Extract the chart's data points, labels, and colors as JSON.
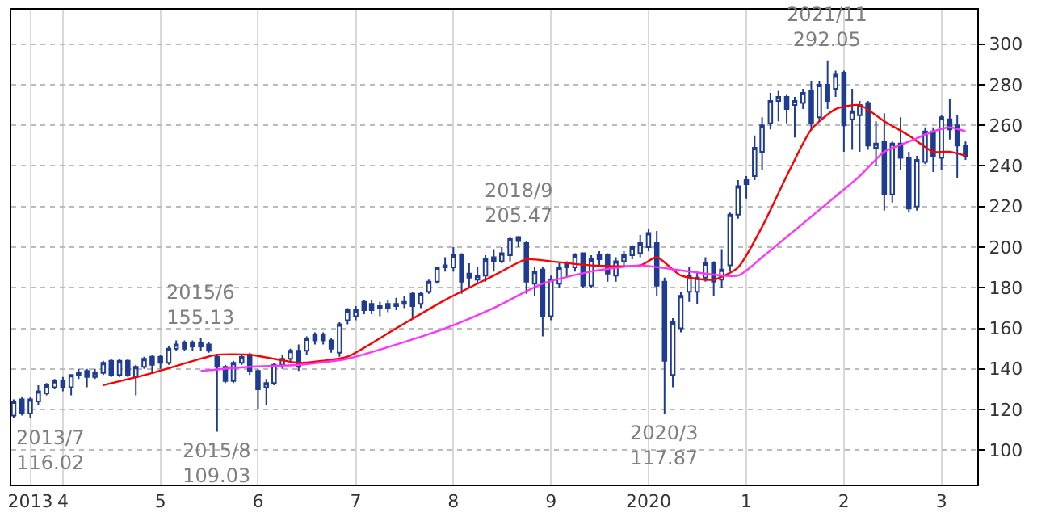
{
  "chart_data": {
    "type": "candlestick",
    "xlim": [
      "2013-06-22",
      "2023-05-15"
    ],
    "ylim": [
      83,
      317
    ],
    "xticks": [
      {
        "value": "2013-09-01",
        "label": "2013"
      },
      {
        "value": "2014-01-01",
        "label": "4"
      },
      {
        "value": "2015-01-01",
        "label": "5"
      },
      {
        "value": "2016-01-01",
        "label": "6"
      },
      {
        "value": "2017-01-01",
        "label": "7"
      },
      {
        "value": "2018-01-01",
        "label": "8"
      },
      {
        "value": "2019-01-01",
        "label": "9"
      },
      {
        "value": "2020-01-01",
        "label": "2020"
      },
      {
        "value": "2021-01-01",
        "label": "1"
      },
      {
        "value": "2022-01-01",
        "label": "2"
      },
      {
        "value": "2023-01-01",
        "label": "3"
      }
    ],
    "yticks": [
      100,
      120,
      140,
      160,
      180,
      200,
      220,
      240,
      260,
      280,
      300
    ],
    "grid": true,
    "annotations": [
      {
        "text": "2013/7\n116.02",
        "x": "2013-07",
        "y": 116.02
      },
      {
        "text": "2015/6\n155.13",
        "x": "2015-06",
        "y": 155.13
      },
      {
        "text": "2015/8\n109.03",
        "x": "2015-08",
        "y": 109.03
      },
      {
        "text": "2018/9\n205.47",
        "x": "2018-09",
        "y": 205.47
      },
      {
        "text": "2020/3\n117.87",
        "x": "2020-03",
        "y": 117.87
      },
      {
        "text": "2021/11\n292.05",
        "x": "2021-11",
        "y": 292.05
      }
    ],
    "series": [
      {
        "color": "#1f3c92",
        "x": [
          "2013-07",
          "2013-08",
          "2013-09",
          "2013-10",
          "2013-11",
          "2013-12",
          "2014-01",
          "2014-02",
          "2014-03",
          "2014-04",
          "2014-05",
          "2014-06",
          "2014-07",
          "2014-08",
          "2014-09",
          "2014-10",
          "2014-11",
          "2014-12",
          "2015-01",
          "2015-02",
          "2015-03",
          "2015-04",
          "2015-05",
          "2015-06",
          "2015-07",
          "2015-08",
          "2015-09",
          "2015-10",
          "2015-11",
          "2015-12",
          "2016-01",
          "2016-02",
          "2016-03",
          "2016-04",
          "2016-05",
          "2016-06",
          "2016-07",
          "2016-08",
          "2016-09",
          "2016-10",
          "2016-11",
          "2016-12",
          "2017-01",
          "2017-02",
          "2017-03",
          "2017-04",
          "2017-05",
          "2017-06",
          "2017-07",
          "2017-08",
          "2017-09",
          "2017-10",
          "2017-11",
          "2017-12",
          "2018-01",
          "2018-02",
          "2018-03",
          "2018-04",
          "2018-05",
          "2018-06",
          "2018-07",
          "2018-08",
          "2018-09",
          "2018-10",
          "2018-11",
          "2018-12",
          "2019-01",
          "2019-02",
          "2019-03",
          "2019-04",
          "2019-05",
          "2019-06",
          "2019-07",
          "2019-08",
          "2019-09",
          "2019-10",
          "2019-11",
          "2019-12",
          "2020-01",
          "2020-02",
          "2020-03",
          "2020-04",
          "2020-05",
          "2020-06",
          "2020-07",
          "2020-08",
          "2020-09",
          "2020-10",
          "2020-11",
          "2020-12",
          "2021-01",
          "2021-02",
          "2021-03",
          "2021-04",
          "2021-05",
          "2021-06",
          "2021-07",
          "2021-08",
          "2021-09",
          "2021-10",
          "2021-11",
          "2021-12",
          "2022-01",
          "2022-02",
          "2022-03",
          "2022-04",
          "2022-05",
          "2022-06",
          "2022-07",
          "2022-08",
          "2022-09",
          "2022-10",
          "2022-11",
          "2022-12",
          "2023-01",
          "2023-02",
          "2023-03",
          "2023-04"
        ],
        "ohlc": [
          [
            117,
            125,
            116.02,
            124
          ],
          [
            125,
            126,
            117,
            118
          ],
          [
            118,
            126,
            116,
            125
          ],
          [
            124,
            132,
            122,
            129
          ],
          [
            128,
            133,
            127,
            132
          ],
          [
            131,
            135,
            130,
            134
          ],
          [
            134,
            136,
            129,
            131
          ],
          [
            131,
            137,
            127,
            137
          ],
          [
            137,
            140,
            135,
            138
          ],
          [
            139,
            140,
            131,
            136
          ],
          [
            136,
            140,
            135,
            138
          ],
          [
            138,
            144,
            137,
            143
          ],
          [
            144,
            145,
            136,
            137
          ],
          [
            137,
            145,
            136,
            144
          ],
          [
            144,
            145,
            136,
            137
          ],
          [
            136,
            142,
            127,
            141
          ],
          [
            141,
            146,
            140,
            145
          ],
          [
            146,
            147,
            138,
            142
          ],
          [
            146,
            147,
            140,
            143
          ],
          [
            143,
            151,
            142,
            150
          ],
          [
            150,
            154,
            149,
            152
          ],
          [
            153,
            154,
            149,
            150
          ],
          [
            153,
            154,
            149,
            151
          ],
          [
            153,
            155.13,
            149,
            151
          ],
          [
            152,
            153,
            148,
            149
          ],
          [
            146,
            147,
            109.03,
            141
          ],
          [
            141,
            142,
            133,
            134
          ],
          [
            134,
            144,
            133,
            143
          ],
          [
            143,
            147,
            142,
            146
          ],
          [
            147,
            148,
            137,
            139
          ],
          [
            139,
            140,
            120,
            130
          ],
          [
            131,
            135,
            122,
            133
          ],
          [
            133,
            143,
            132,
            142
          ],
          [
            142,
            147,
            140,
            145
          ],
          [
            145,
            150,
            143,
            149
          ],
          [
            149,
            152,
            139,
            141
          ],
          [
            149,
            156,
            147,
            155
          ],
          [
            157,
            158,
            152,
            154
          ],
          [
            157,
            158,
            152,
            154
          ],
          [
            154,
            155,
            148,
            150
          ],
          [
            148,
            163,
            146,
            162
          ],
          [
            164,
            170,
            162,
            169
          ],
          [
            166,
            171,
            164,
            169
          ],
          [
            173,
            174,
            167,
            169
          ],
          [
            172,
            174,
            167,
            169
          ],
          [
            170,
            173,
            166,
            171
          ],
          [
            172,
            174,
            168,
            170
          ],
          [
            171,
            175,
            169,
            172
          ],
          [
            172,
            176,
            170,
            173
          ],
          [
            177,
            178,
            165,
            171
          ],
          [
            172,
            178,
            170,
            177
          ],
          [
            178,
            184,
            177,
            183
          ],
          [
            183,
            190,
            182,
            190
          ],
          [
            190,
            195,
            188,
            191
          ],
          [
            190,
            200,
            188,
            196
          ],
          [
            196,
            197,
            177,
            183
          ],
          [
            187,
            192,
            180,
            185
          ],
          [
            184,
            190,
            182,
            186
          ],
          [
            186,
            196,
            183,
            194
          ],
          [
            195,
            199,
            188,
            193
          ],
          [
            193,
            200,
            192,
            197
          ],
          [
            196,
            205,
            193,
            204
          ],
          [
            205,
            205.47,
            200,
            203
          ],
          [
            202,
            203,
            177,
            183
          ],
          [
            182,
            190,
            176,
            188
          ],
          [
            189,
            190,
            156,
            166
          ],
          [
            166,
            186,
            164,
            184
          ],
          [
            182,
            192,
            180,
            190
          ],
          [
            192,
            193,
            185,
            190
          ],
          [
            190,
            197,
            188,
            196
          ],
          [
            197,
            197,
            180,
            181
          ],
          [
            181,
            196,
            180,
            194
          ],
          [
            194,
            198,
            190,
            196
          ],
          [
            196,
            197,
            183,
            187
          ],
          [
            186,
            195,
            183,
            193
          ],
          [
            193,
            198,
            190,
            196
          ],
          [
            196,
            201,
            194,
            200
          ],
          [
            197,
            206,
            195,
            202
          ],
          [
            200,
            209,
            198,
            207
          ],
          [
            202,
            208,
            176,
            181
          ],
          [
            183,
            185,
            117.87,
            144
          ],
          [
            137,
            165,
            131,
            163
          ],
          [
            160,
            178,
            158,
            176
          ],
          [
            178,
            190,
            173,
            186
          ],
          [
            178,
            188,
            172,
            185
          ],
          [
            185,
            195,
            183,
            192
          ],
          [
            192,
            193,
            176,
            183
          ],
          [
            184,
            199,
            180,
            189
          ],
          [
            191,
            217,
            188,
            216
          ],
          [
            216,
            233,
            214,
            230
          ],
          [
            231,
            235,
            224,
            233
          ],
          [
            235,
            255,
            233,
            249
          ],
          [
            247,
            264,
            238,
            260
          ],
          [
            261,
            276,
            258,
            272
          ],
          [
            272,
            277,
            262,
            274
          ],
          [
            274,
            275,
            261,
            268
          ],
          [
            270,
            274,
            254,
            272
          ],
          [
            271,
            278,
            268,
            276
          ],
          [
            277,
            282,
            258,
            261
          ],
          [
            264,
            282,
            262,
            280
          ],
          [
            280,
            292.05,
            268,
            272
          ],
          [
            278,
            287,
            274,
            285
          ],
          [
            286,
            287,
            247,
            260
          ],
          [
            263,
            278,
            248,
            267
          ],
          [
            265,
            272,
            247,
            270
          ],
          [
            271,
            272,
            248,
            250
          ],
          [
            249,
            262,
            240,
            251
          ],
          [
            252,
            266,
            218,
            226
          ],
          [
            226,
            252,
            222,
            251
          ],
          [
            251,
            264,
            238,
            244
          ],
          [
            244,
            247,
            217,
            219
          ],
          [
            220,
            245,
            218,
            243
          ],
          [
            242,
            259,
            241,
            257
          ],
          [
            257,
            259,
            237,
            245
          ],
          [
            244,
            265,
            238,
            264
          ],
          [
            263,
            273,
            253,
            258
          ],
          [
            260,
            265,
            234,
            250
          ],
          [
            250,
            252,
            243,
            245
          ]
        ]
      },
      {
        "type": "line",
        "color": "#ff0000",
        "x": [
          "2014-06",
          "2014-12",
          "2015-06",
          "2015-08",
          "2015-12",
          "2016-03",
          "2016-06",
          "2016-09",
          "2016-12",
          "2017-06",
          "2017-12",
          "2018-06",
          "2018-10",
          "2019-01",
          "2019-06",
          "2019-12",
          "2020-02",
          "2020-05",
          "2020-09",
          "2020-12",
          "2021-03",
          "2021-06",
          "2021-09",
          "2021-12",
          "2022-03",
          "2022-06",
          "2022-09",
          "2022-12",
          "2023-02",
          "2023-04"
        ],
        "values": [
          132,
          138,
          145,
          147,
          147,
          145,
          143,
          144,
          146,
          160,
          174,
          186,
          194,
          193,
          191,
          191,
          195,
          186,
          184,
          190,
          210,
          235,
          258,
          268,
          270,
          262,
          255,
          247,
          247,
          245
        ]
      },
      {
        "type": "line",
        "color": "#ff33ff",
        "x": [
          "2015-06",
          "2015-12",
          "2016-06",
          "2016-12",
          "2017-06",
          "2017-12",
          "2018-06",
          "2018-12",
          "2019-06",
          "2019-12",
          "2020-06",
          "2020-12",
          "2021-03",
          "2021-06",
          "2021-12",
          "2022-03",
          "2022-06",
          "2022-09",
          "2022-12",
          "2023-02",
          "2023-04"
        ],
        "values": [
          139,
          141,
          142,
          145,
          152,
          160,
          170,
          182,
          188,
          191,
          188,
          186,
          195,
          205,
          225,
          235,
          247,
          252,
          257,
          259,
          257
        ]
      }
    ]
  }
}
